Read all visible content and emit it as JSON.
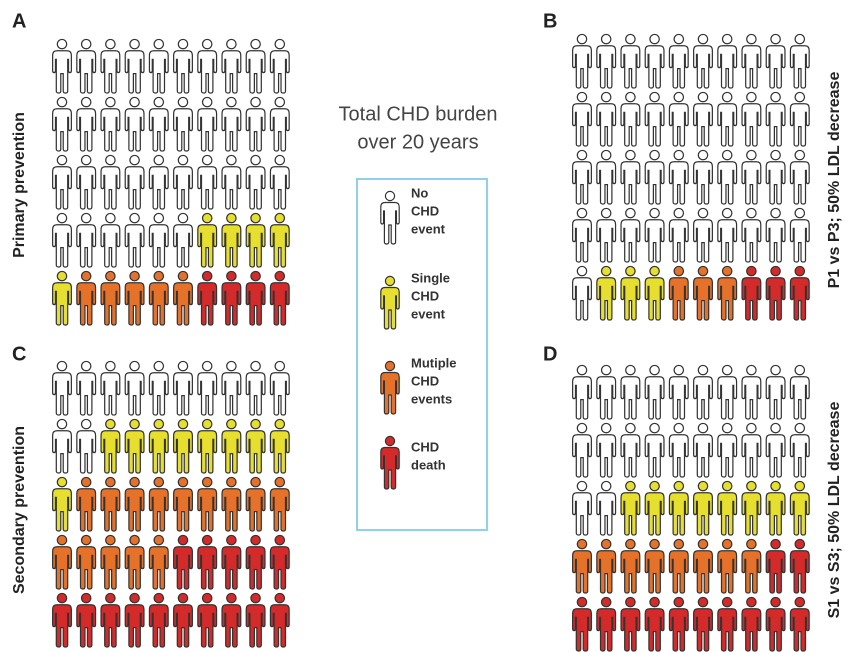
{
  "title": [
    "Total CHD burden",
    "over 20 years"
  ],
  "categories": [
    {
      "label": [
        "No",
        "CHD",
        "event"
      ],
      "color": "#ffffff"
    },
    {
      "label": [
        "Single",
        "CHD",
        "event"
      ],
      "color": "#e6df2e"
    },
    {
      "label": [
        "Mutiple",
        "CHD",
        "events"
      ],
      "color": "#e6722a"
    },
    {
      "label": [
        "CHD",
        "death"
      ],
      "color": "#d42a2a"
    }
  ],
  "panels": [
    {
      "letter": "A",
      "label": "Primary prevention",
      "counts": [
        36,
        5,
        5,
        4
      ]
    },
    {
      "letter": "B",
      "label": "P1 vs P3; 50% LDL decrease",
      "counts": [
        41,
        3,
        3,
        3
      ]
    },
    {
      "letter": "C",
      "label": "Secondary prevention",
      "counts": [
        12,
        9,
        14,
        15
      ]
    },
    {
      "letter": "D",
      "label": "S1 vs S3; 50% LDL decrease",
      "counts": [
        22,
        8,
        8,
        12
      ]
    }
  ]
}
